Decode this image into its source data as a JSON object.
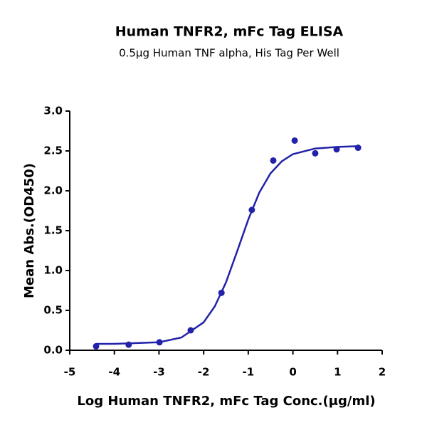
{
  "chart_data": {
    "type": "scatter",
    "title": "Human TNFR2, mFc Tag ELISA",
    "subtitle": "0.5μg Human TNF alpha, His Tag Per Well",
    "x_label": "Log Human TNFR2, mFc Tag Conc.(μg/ml)",
    "y_label": "Mean Abs.(OD450)",
    "color": "#2222aa",
    "x": [
      -4.41,
      -3.68,
      -2.99,
      -2.29,
      -1.6,
      -0.92,
      -0.44,
      0.04,
      0.5,
      0.98,
      1.46
    ],
    "values": [
      0.05,
      0.07,
      0.1,
      0.25,
      0.72,
      1.76,
      2.38,
      2.63,
      2.47,
      2.52,
      2.54
    ],
    "curve": {
      "x": [
        -4.4,
        -4,
        -3.5,
        -3,
        -2.5,
        -2,
        -1.75,
        -1.5,
        -1.25,
        -1,
        -0.75,
        -0.5,
        -0.25,
        0,
        0.5,
        1,
        1.5
      ],
      "values": [
        0.08,
        0.08,
        0.09,
        0.1,
        0.16,
        0.35,
        0.55,
        0.85,
        1.24,
        1.64,
        1.98,
        2.22,
        2.37,
        2.46,
        2.53,
        2.55,
        2.56
      ]
    },
    "xlim": [
      -5,
      2
    ],
    "xticks": [
      -5,
      -4,
      -3,
      -2,
      -1,
      0,
      1,
      2
    ],
    "ylim": [
      0,
      3
    ],
    "yticks": [
      {
        "value": 0,
        "label": "0.0"
      },
      0.5,
      {
        "value": 1,
        "label": "1.0"
      },
      1.5,
      {
        "value": 2,
        "label": "2.0"
      },
      2.5,
      {
        "value": 3,
        "label": "3.0"
      }
    ]
  }
}
